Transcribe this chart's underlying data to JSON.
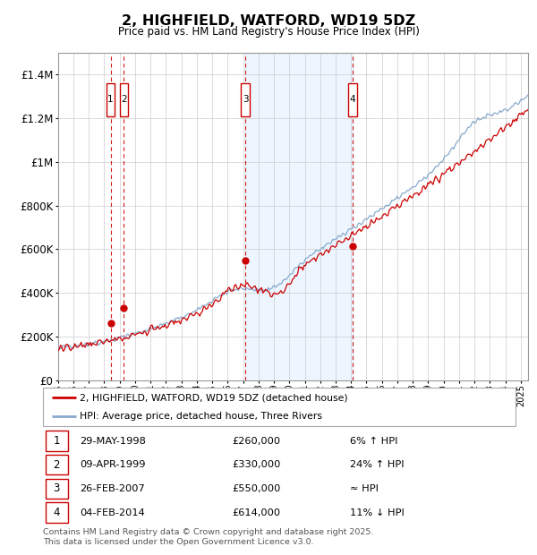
{
  "title": "2, HIGHFIELD, WATFORD, WD19 5DZ",
  "subtitle": "Price paid vs. HM Land Registry's House Price Index (HPI)",
  "ylim": [
    0,
    1500000
  ],
  "yticks": [
    0,
    200000,
    400000,
    600000,
    800000,
    1000000,
    1200000,
    1400000
  ],
  "ytick_labels": [
    "£0",
    "£200K",
    "£400K",
    "£600K",
    "£800K",
    "£1M",
    "£1.2M",
    "£1.4M"
  ],
  "x_start_year": 1995,
  "x_end_year": 2025.5,
  "transactions": [
    {
      "num": 1,
      "date": "29-MAY-1998",
      "year": 1998.41,
      "price": 260000,
      "label": "6% ↑ HPI"
    },
    {
      "num": 2,
      "date": "09-APR-1999",
      "year": 1999.27,
      "price": 330000,
      "label": "24% ↑ HPI"
    },
    {
      "num": 3,
      "date": "26-FEB-2007",
      "year": 2007.15,
      "price": 550000,
      "label": "≈ HPI"
    },
    {
      "num": 4,
      "date": "04-FEB-2014",
      "year": 2014.09,
      "price": 614000,
      "label": "11% ↓ HPI"
    }
  ],
  "legend_line1": "2, HIGHFIELD, WATFORD, WD19 5DZ (detached house)",
  "legend_line2": "HPI: Average price, detached house, Three Rivers",
  "footnote": "Contains HM Land Registry data © Crown copyright and database right 2025.\nThis data is licensed under the Open Government Licence v3.0.",
  "line_color_price": "#cc0000",
  "line_color_hpi": "#88aacc",
  "fill_color_hpi": "#ddeeff",
  "marker_box_color": "#cc0000",
  "dashed_line_color": "#cc0000",
  "shaded_region": [
    2007.15,
    2014.09
  ]
}
